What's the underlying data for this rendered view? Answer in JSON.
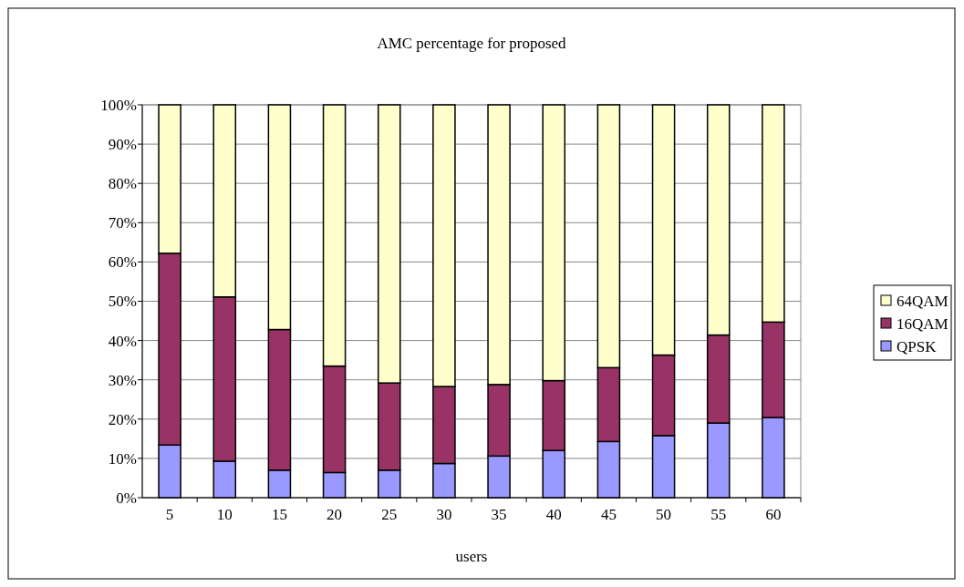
{
  "chart_data": {
    "type": "bar",
    "title": "AMC percentage for proposed",
    "xlabel": "users",
    "categories": [
      "5",
      "10",
      "15",
      "20",
      "25",
      "30",
      "35",
      "40",
      "45",
      "50",
      "55",
      "60"
    ],
    "stacked": true,
    "series": [
      {
        "name": "QPSK",
        "color": "#9999ff",
        "values": [
          13.4,
          9.3,
          7.0,
          6.4,
          7.0,
          8.7,
          10.6,
          12.0,
          14.3,
          15.8,
          19.0,
          20.4
        ]
      },
      {
        "name": "16QAM",
        "color": "#993366",
        "values": [
          48.8,
          41.8,
          35.8,
          27.1,
          22.2,
          19.6,
          18.2,
          17.8,
          18.8,
          20.5,
          22.4,
          24.3
        ]
      },
      {
        "name": "64QAM",
        "color": "#ffffcc",
        "values": [
          37.8,
          48.9,
          57.2,
          66.5,
          70.8,
          71.7,
          71.2,
          70.2,
          66.9,
          63.7,
          58.6,
          55.3
        ]
      }
    ],
    "ylim": [
      0,
      100
    ],
    "yticks": [
      {
        "value": 0,
        "label": "0%"
      },
      {
        "value": 10,
        "label": "10%"
      },
      {
        "value": 20,
        "label": "20%"
      },
      {
        "value": 30,
        "label": "30%"
      },
      {
        "value": 40,
        "label": "40%"
      },
      {
        "value": 50,
        "label": "50%"
      },
      {
        "value": 60,
        "label": "60%"
      },
      {
        "value": 70,
        "label": "70%"
      },
      {
        "value": 80,
        "label": "80%"
      },
      {
        "value": 90,
        "label": "90%"
      },
      {
        "value": 100,
        "label": "100%"
      }
    ],
    "grid": "y",
    "legend": "right"
  }
}
